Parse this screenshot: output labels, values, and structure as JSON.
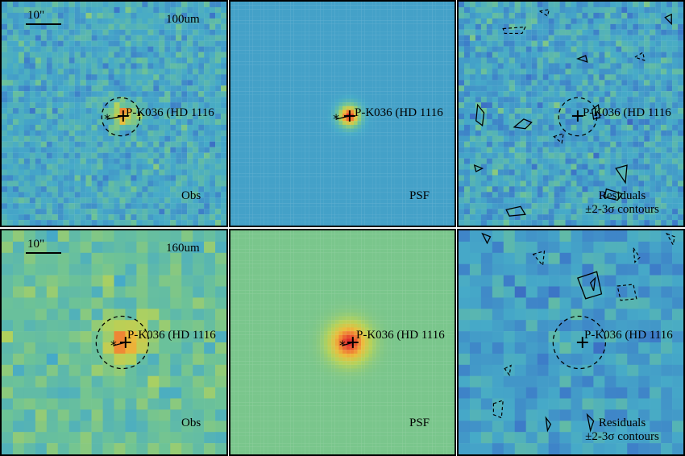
{
  "colors": {
    "background": "#ffffff",
    "frame": "#000000",
    "psf_bg_100": "#5aa0b8",
    "psf_bg_160": "#86bf74"
  },
  "rows": [
    {
      "band": "100um",
      "scalebar": "10\"",
      "source_label": "P-K036 (HD 1116",
      "panels": {
        "obs": "Obs",
        "psf": "PSF",
        "residuals_line1": "Residuals",
        "residuals_line2": "±2-3σ contours"
      }
    },
    {
      "band": "160um",
      "scalebar": "10\"",
      "source_label": "P-K036 (HD 1116",
      "panels": {
        "obs": "Obs",
        "psf": "PSF",
        "residuals_line1": "Residuals",
        "residuals_line2": "±2-3σ contours"
      }
    }
  ]
}
